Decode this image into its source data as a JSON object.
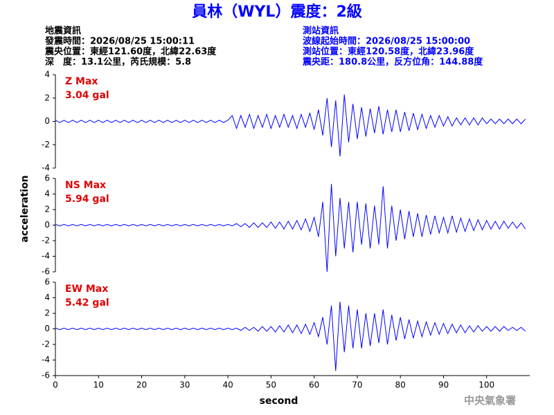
{
  "title": "員林（WYL）震度：2級",
  "left_info": [
    "地震資訊",
    "發震時間：2026/08/25 15:00:11",
    "震央位置：東經121.60度，北緯22.63度",
    "深　度：13.1公里，芮氏規模：5.8"
  ],
  "right_info": [
    "測站資訊",
    "波線起始時間：2026/08/25 15:00:00",
    "測站位置：東經120.58度，北緯23.96度",
    "震央距：180.8公里，反方位角：144.88度"
  ],
  "ylabel": "acceleration",
  "footer": "中央氣象署",
  "chart_data": [
    {
      "type": "line",
      "annotation": [
        "Z Max",
        "3.04 gal"
      ],
      "color": "#0000ff",
      "xlim": [
        0,
        110
      ],
      "ylim": [
        -4,
        4
      ],
      "yticks": [
        -4,
        -2,
        0,
        2,
        4
      ],
      "x": [
        0,
        1,
        2,
        3,
        4,
        5,
        6,
        7,
        8,
        9,
        10,
        11,
        12,
        13,
        14,
        15,
        16,
        17,
        18,
        19,
        20,
        21,
        22,
        23,
        24,
        25,
        26,
        27,
        28,
        29,
        30,
        31,
        32,
        33,
        34,
        35,
        36,
        37,
        38,
        39,
        40,
        41,
        42,
        43,
        44,
        45,
        46,
        47,
        48,
        49,
        50,
        51,
        52,
        53,
        54,
        55,
        56,
        57,
        58,
        59,
        60,
        61,
        62,
        63,
        64,
        65,
        66,
        67,
        68,
        69,
        70,
        71,
        72,
        73,
        74,
        75,
        76,
        77,
        78,
        79,
        80,
        81,
        82,
        83,
        84,
        85,
        86,
        87,
        88,
        89,
        90,
        91,
        92,
        93,
        94,
        95,
        96,
        97,
        98,
        99,
        100,
        101,
        102,
        103,
        104,
        105,
        106,
        107,
        108,
        109
      ],
      "values": [
        0.1,
        -0.1,
        0.1,
        -0.1,
        0.1,
        -0.1,
        0.1,
        -0.1,
        0.1,
        -0.1,
        0.1,
        -0.1,
        0.1,
        -0.1,
        0.1,
        -0.1,
        0.1,
        -0.1,
        0.1,
        -0.1,
        0.1,
        -0.1,
        0.1,
        -0.1,
        0.1,
        -0.1,
        0.1,
        -0.1,
        0.1,
        -0.1,
        0.1,
        -0.1,
        0.1,
        -0.1,
        0.1,
        -0.1,
        0.1,
        -0.1,
        0.1,
        -0.1,
        0.1,
        0.5,
        -0.6,
        0.5,
        -0.5,
        0.6,
        -0.6,
        0.5,
        -0.5,
        0.6,
        -0.6,
        0.5,
        -0.5,
        0.6,
        -0.5,
        0.5,
        -0.6,
        0.6,
        -0.5,
        0.7,
        -0.7,
        1.0,
        -1.2,
        2.0,
        -2.2,
        1.8,
        -3.0,
        2.3,
        -1.8,
        1.5,
        -1.5,
        1.2,
        -1.3,
        1.1,
        -1.0,
        1.3,
        -1.1,
        1.0,
        -0.9,
        1.0,
        -0.9,
        0.8,
        -0.8,
        0.7,
        -0.7,
        0.6,
        -0.6,
        0.5,
        -0.5,
        0.5,
        -0.4,
        0.4,
        -0.4,
        0.3,
        -0.3,
        0.3,
        -0.3,
        0.3,
        -0.3,
        0.3,
        -0.2,
        0.2,
        -0.2,
        0.2,
        -0.2,
        0.2,
        -0.2,
        0.2,
        -0.2,
        0.2
      ]
    },
    {
      "type": "line",
      "annotation": [
        "NS Max",
        "5.94 gal"
      ],
      "color": "#0000ff",
      "xlim": [
        0,
        110
      ],
      "ylim": [
        -6,
        6
      ],
      "yticks": [
        -6,
        -4,
        -2,
        0,
        2,
        4,
        6
      ],
      "x": [
        0,
        1,
        2,
        3,
        4,
        5,
        6,
        7,
        8,
        9,
        10,
        11,
        12,
        13,
        14,
        15,
        16,
        17,
        18,
        19,
        20,
        21,
        22,
        23,
        24,
        25,
        26,
        27,
        28,
        29,
        30,
        31,
        32,
        33,
        34,
        35,
        36,
        37,
        38,
        39,
        40,
        41,
        42,
        43,
        44,
        45,
        46,
        47,
        48,
        49,
        50,
        51,
        52,
        53,
        54,
        55,
        56,
        57,
        58,
        59,
        60,
        61,
        62,
        63,
        64,
        65,
        66,
        67,
        68,
        69,
        70,
        71,
        72,
        73,
        74,
        75,
        76,
        77,
        78,
        79,
        80,
        81,
        82,
        83,
        84,
        85,
        86,
        87,
        88,
        89,
        90,
        91,
        92,
        93,
        94,
        95,
        96,
        97,
        98,
        99,
        100,
        101,
        102,
        103,
        104,
        105,
        106,
        107,
        108,
        109
      ],
      "values": [
        0.1,
        -0.1,
        0.1,
        -0.1,
        0.1,
        -0.1,
        0.1,
        -0.1,
        0.1,
        -0.1,
        0.1,
        -0.1,
        0.1,
        -0.1,
        0.1,
        -0.1,
        0.1,
        -0.1,
        0.1,
        -0.1,
        0.1,
        -0.1,
        0.1,
        -0.1,
        0.1,
        -0.1,
        0.1,
        -0.1,
        0.1,
        -0.1,
        0.1,
        -0.1,
        0.1,
        -0.1,
        0.1,
        -0.1,
        0.1,
        -0.1,
        0.1,
        -0.1,
        0.1,
        -0.1,
        0.2,
        -0.2,
        0.2,
        -0.3,
        0.3,
        -0.3,
        0.3,
        -0.3,
        0.4,
        -0.4,
        0.4,
        -0.5,
        0.5,
        -0.5,
        0.6,
        -0.6,
        0.8,
        -0.8,
        1.0,
        -1.5,
        3.0,
        -6.0,
        5.3,
        -4.0,
        3.5,
        -3.0,
        3.0,
        -3.5,
        3.0,
        -2.5,
        2.8,
        -3.0,
        2.5,
        -2.5,
        5.0,
        -3.0,
        2.5,
        -2.0,
        2.0,
        -1.8,
        1.8,
        -1.5,
        1.5,
        -1.5,
        1.3,
        -1.2,
        1.2,
        -1.0,
        1.0,
        -1.0,
        1.2,
        -0.9,
        0.9,
        -0.8,
        0.8,
        -0.7,
        0.7,
        -0.6,
        0.6,
        -0.5,
        0.5,
        -0.5,
        0.5,
        -0.4,
        0.4,
        -0.4,
        0.3,
        -0.5
      ]
    },
    {
      "type": "line",
      "annotation": [
        "EW Max",
        "5.42 gal"
      ],
      "color": "#0000ff",
      "xlim": [
        0,
        110
      ],
      "ylim": [
        -6,
        6
      ],
      "yticks": [
        -6,
        -4,
        -2,
        0,
        2,
        4,
        6
      ],
      "xticks": [
        0,
        10,
        20,
        30,
        40,
        50,
        60,
        70,
        80,
        90,
        100
      ],
      "xlabel": "second",
      "x": [
        0,
        1,
        2,
        3,
        4,
        5,
        6,
        7,
        8,
        9,
        10,
        11,
        12,
        13,
        14,
        15,
        16,
        17,
        18,
        19,
        20,
        21,
        22,
        23,
        24,
        25,
        26,
        27,
        28,
        29,
        30,
        31,
        32,
        33,
        34,
        35,
        36,
        37,
        38,
        39,
        40,
        41,
        42,
        43,
        44,
        45,
        46,
        47,
        48,
        49,
        50,
        51,
        52,
        53,
        54,
        55,
        56,
        57,
        58,
        59,
        60,
        61,
        62,
        63,
        64,
        65,
        66,
        67,
        68,
        69,
        70,
        71,
        72,
        73,
        74,
        75,
        76,
        77,
        78,
        79,
        80,
        81,
        82,
        83,
        84,
        85,
        86,
        87,
        88,
        89,
        90,
        91,
        92,
        93,
        94,
        95,
        96,
        97,
        98,
        99,
        100,
        101,
        102,
        103,
        104,
        105,
        106,
        107,
        108,
        109
      ],
      "values": [
        0.1,
        -0.1,
        0.1,
        -0.1,
        0.1,
        -0.1,
        0.1,
        -0.1,
        0.1,
        -0.1,
        0.1,
        -0.1,
        0.1,
        -0.1,
        0.1,
        -0.1,
        0.1,
        -0.1,
        0.1,
        -0.1,
        0.1,
        -0.1,
        0.1,
        -0.1,
        0.1,
        -0.1,
        0.1,
        -0.1,
        0.1,
        -0.1,
        0.1,
        -0.1,
        0.1,
        -0.1,
        0.1,
        -0.1,
        0.1,
        -0.1,
        0.1,
        -0.1,
        0.1,
        -0.1,
        0.1,
        -0.2,
        0.2,
        -0.2,
        0.2,
        -0.3,
        0.3,
        -0.3,
        0.3,
        -0.4,
        0.4,
        -0.4,
        0.5,
        -0.5,
        0.5,
        -0.6,
        0.6,
        -0.7,
        0.8,
        -1.0,
        1.5,
        -2.0,
        3.0,
        -5.4,
        3.5,
        -3.0,
        3.0,
        -2.5,
        2.5,
        -2.5,
        2.0,
        -2.2,
        2.0,
        -1.8,
        2.5,
        -2.0,
        1.8,
        -1.5,
        1.5,
        -1.3,
        1.2,
        -1.2,
        1.0,
        -1.0,
        0.9,
        -0.8,
        0.8,
        -0.7,
        0.7,
        -0.6,
        0.6,
        -0.5,
        0.5,
        -0.5,
        0.4,
        -0.4,
        0.4,
        -0.3,
        0.3,
        -0.3,
        0.3,
        -0.3,
        0.3,
        -0.2,
        0.2,
        -0.2,
        0.2,
        -0.3
      ]
    }
  ]
}
